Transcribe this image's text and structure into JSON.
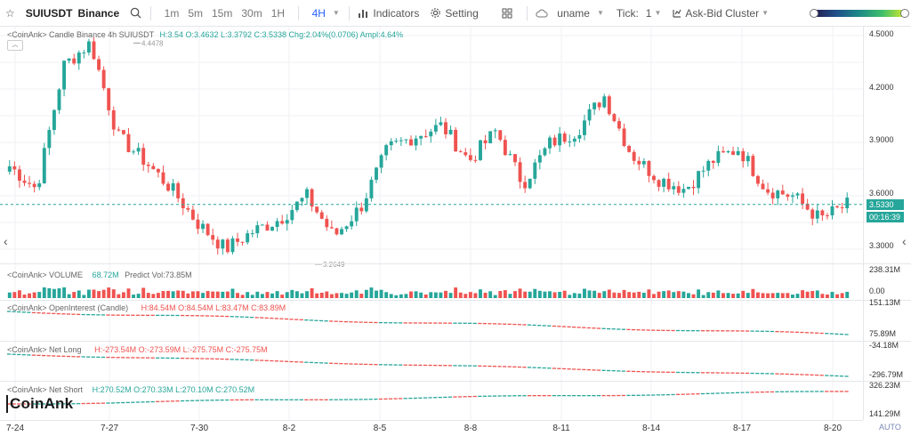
{
  "toolbar": {
    "symbol": "SUIUSDT",
    "exchange": "Binance",
    "intervals": [
      "1m",
      "5m",
      "15m",
      "30m",
      "1H",
      "4H"
    ],
    "active_interval": "4H",
    "indicators_label": "Indicators",
    "setting_label": "Setting",
    "uname_label": "uname",
    "tick_label": "Tick:",
    "tick_value": "1",
    "cluster_label": "Ask-Bid Cluster"
  },
  "main_pane": {
    "title_prefix": "<CoinAnk> Candle  Binance 4h SUIUSDT",
    "ohlc": "H:3.54  O:3.4632  L:3.3792  C:3.5338  Chg:2.04%(0.0706)  Ampl:4.64%",
    "high_marker": "4.4478",
    "low_marker": "3.2649",
    "price_ticks": [
      "4.5000",
      "4.2000",
      "3.9000",
      "3.6000",
      "3.3000"
    ],
    "last_price": "3.5330",
    "countdown": "00:16:39"
  },
  "volume_pane": {
    "title": "<CoinAnk> VOLUME",
    "value": "68.72M",
    "predict": "Predict Vol:73.85M",
    "ticks": [
      "238.31M",
      "0.00"
    ]
  },
  "oi_pane": {
    "title": "<CoinAnk> OpenInterest (Candle)",
    "ohlc": "H:84.54M  O:84.54M  L:83.47M  C:83.89M",
    "ticks": [
      "151.13M",
      "75.89M"
    ]
  },
  "netlong_pane": {
    "title": "<CoinAnk> Net Long",
    "ohlc": "H:-273.54M  O:-273.59M  L:-275.75M  C:-275.75M",
    "ticks": [
      "-34.18M",
      "-296.79M"
    ]
  },
  "netshort_pane": {
    "title": "<CoinAnk> Net Short",
    "ohlc": "H:270.52M  O:270.33M  L:270.10M  C:270.52M",
    "ticks": [
      "326.23M",
      "141.29M"
    ]
  },
  "time_axis": [
    "7-24",
    "7-27",
    "7-30",
    "8-2",
    "8-5",
    "8-8",
    "8-11",
    "8-14",
    "8-17",
    "8-20"
  ],
  "auto_label": "AUTO",
  "logo_text": "CoinAnk",
  "colors": {
    "up": "#26a69a",
    "down": "#ef5350",
    "accent": "#2962ff"
  },
  "chart_data": {
    "type": "candlestick",
    "x": [
      "7-24",
      "7-27",
      "7-30",
      "8-2",
      "8-5",
      "8-8",
      "8-11",
      "8-14",
      "8-17",
      "8-20"
    ],
    "anchor_closes": [
      3.75,
      3.62,
      4.32,
      4.45,
      3.92,
      3.78,
      3.62,
      3.42,
      3.28,
      3.38,
      3.45,
      3.58,
      3.35,
      3.52,
      3.85,
      3.92,
      3.98,
      3.78,
      3.95,
      3.65,
      3.88,
      3.95,
      4.15,
      3.82,
      3.68,
      3.62,
      3.78,
      3.85,
      3.62,
      3.58,
      3.45,
      3.53
    ],
    "ylim": [
      3.2,
      4.55
    ],
    "grid": true
  }
}
